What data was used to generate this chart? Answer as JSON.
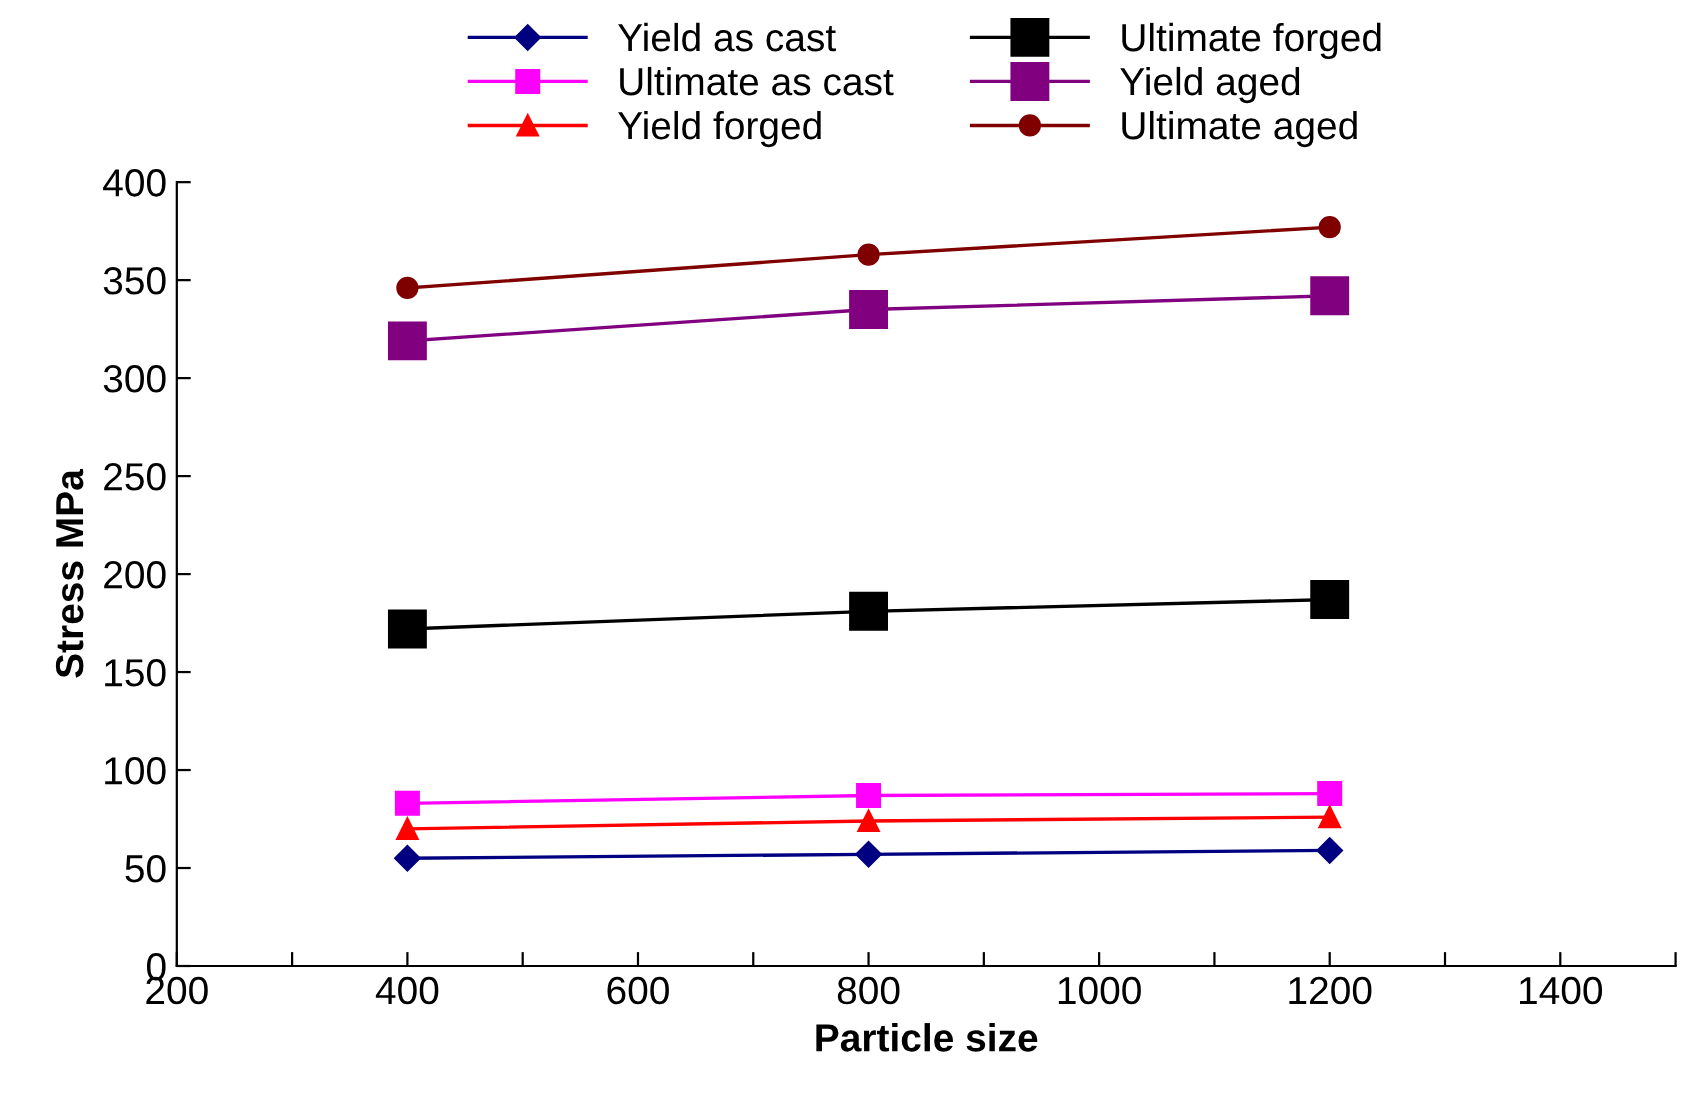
{
  "chart_data": {
    "type": "line",
    "xlabel": "Particle size",
    "ylabel": "Stress MPa",
    "x": [
      400,
      800,
      1200
    ],
    "xlim": [
      200,
      1500
    ],
    "xticks": [
      200,
      {
        "value": 300,
        "label": null
      },
      400,
      {
        "value": 500,
        "label": null
      },
      600,
      {
        "value": 700,
        "label": null
      },
      800,
      {
        "value": 900,
        "label": null
      },
      1000,
      {
        "value": 1100,
        "label": null
      },
      1200,
      {
        "value": 1300,
        "label": null
      },
      1400,
      {
        "value": 1500,
        "label": null
      }
    ],
    "ylim": [
      0,
      400
    ],
    "yticks": [
      0,
      50,
      100,
      150,
      200,
      250,
      300,
      350,
      400
    ],
    "grid": false,
    "legend": "top",
    "line_style": "solid",
    "series": [
      {
        "name": "Yield as cast",
        "color": "#000080",
        "marker": "diamond",
        "values": [
          55,
          57,
          59
        ]
      },
      {
        "name": "Ultimate as cast",
        "color": "#ff00ff",
        "marker": "square",
        "values": [
          83,
          87,
          88
        ]
      },
      {
        "name": "Yield forged",
        "color": "#ff0000",
        "marker": "triangle",
        "values": [
          70,
          74,
          76
        ]
      },
      {
        "name": "Ultimate forged",
        "color": "#000000",
        "marker": "square",
        "values": [
          172,
          181,
          187
        ]
      },
      {
        "name": "Yield aged",
        "color": "#800080",
        "marker": "square",
        "values": [
          319,
          335,
          342
        ]
      },
      {
        "name": "Ultimate aged",
        "color": "#800000",
        "marker": "circle",
        "values": [
          346,
          363,
          377
        ]
      }
    ]
  }
}
